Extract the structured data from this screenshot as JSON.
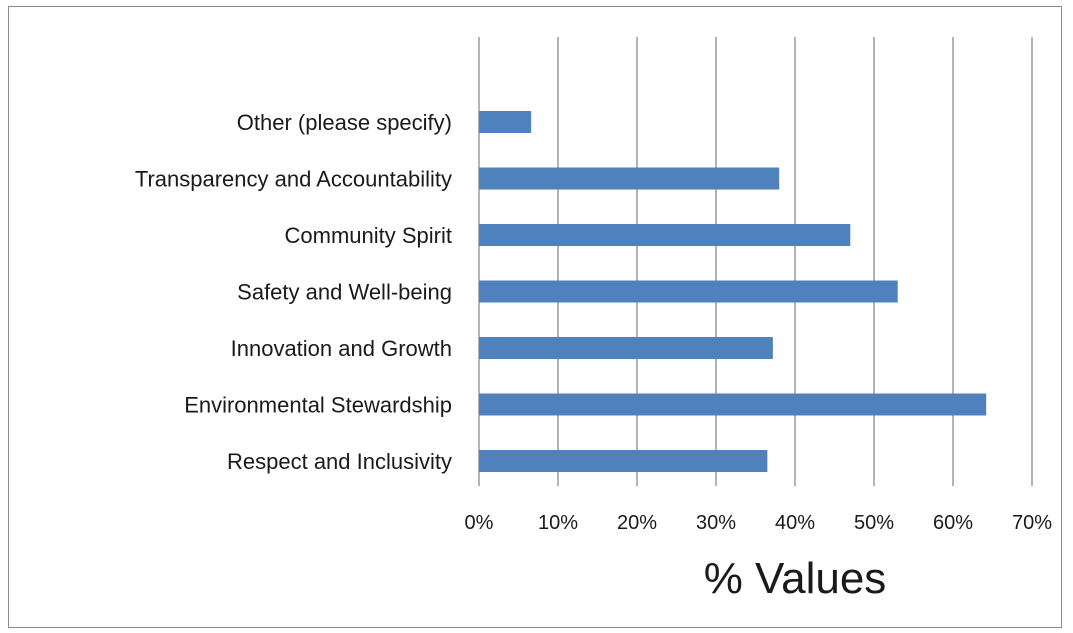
{
  "chart_data": {
    "type": "bar",
    "orientation": "horizontal",
    "categories": [
      "Other (please specify)",
      "Transparency and Accountability",
      "Community Spirit",
      "Safety and Well-being",
      "Innovation and Growth",
      "Environmental Stewardship",
      "Respect and Inclusivity"
    ],
    "values": [
      6.6,
      38.0,
      47.0,
      53.0,
      37.2,
      64.2,
      36.5
    ],
    "title": "",
    "xlabel": "% Values",
    "ylabel": "",
    "xlim": [
      0,
      70
    ],
    "xticks": [
      0,
      10,
      20,
      30,
      40,
      50,
      60,
      70
    ],
    "tick_labels": [
      "0%",
      "10%",
      "20%",
      "30%",
      "40%",
      "50%",
      "60%",
      "70%"
    ],
    "grid": "vertical",
    "legend": "none",
    "bar_color": "#4f81bd",
    "grid_color": "#8c8c8c"
  }
}
